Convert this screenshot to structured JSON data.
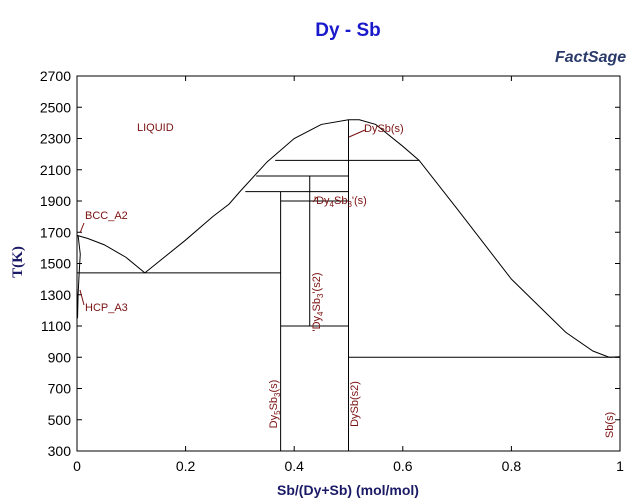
{
  "chart_data": {
    "type": "phase-diagram",
    "title": "Dy - Sb",
    "logo": "FactSage",
    "x_label": "Sb/(Dy+Sb) (mol/mol)",
    "y_label": "T(K)",
    "xlim": [
      0,
      1
    ],
    "ylim": [
      300,
      2700
    ],
    "xticks": [
      0,
      0.2,
      0.4,
      0.6,
      0.8,
      1
    ],
    "yticks": [
      300,
      500,
      700,
      900,
      1100,
      1300,
      1500,
      1700,
      1900,
      2100,
      2300,
      2500,
      2700
    ],
    "color": "#000000",
    "series": [
      {
        "x": [
          0,
          0.02,
          0.05,
          0.09,
          0.125
        ],
        "values": [
          1680,
          1660,
          1620,
          1540,
          1440
        ]
      },
      {
        "x": [
          0.125,
          0.2,
          0.25,
          0.28,
          0.3,
          0.35,
          0.4,
          0.45,
          0.5,
          0.52,
          0.55,
          0.6,
          0.63,
          0.7,
          0.8,
          0.9,
          0.95,
          0.98,
          1
        ],
        "values": [
          1440,
          1650,
          1800,
          1880,
          1960,
          2150,
          2300,
          2390,
          2420,
          2420,
          2390,
          2250,
          2160,
          1850,
          1400,
          1060,
          940,
          900,
          903
        ]
      },
      {
        "x": [
          0,
          0.375
        ],
        "values": [
          1440,
          1440
        ]
      },
      {
        "x": [
          0.365,
          0.63
        ],
        "values": [
          2160,
          2160
        ]
      },
      {
        "x": [
          0.33,
          0.5
        ],
        "values": [
          2060,
          2060
        ]
      },
      {
        "x": [
          0.31,
          0.5
        ],
        "values": [
          1960,
          1960
        ]
      },
      {
        "x": [
          0.375,
          0.5
        ],
        "values": [
          1900,
          1900
        ]
      },
      {
        "x": [
          0.375,
          0.5
        ],
        "values": [
          1100,
          1100
        ]
      },
      {
        "x": [
          0.5,
          1
        ],
        "values": [
          900,
          900
        ]
      },
      {
        "x": [
          0.375,
          0.375
        ],
        "values": [
          300,
          1960
        ]
      },
      {
        "x": [
          0.4286,
          0.4286
        ],
        "values": [
          1100,
          2060
        ]
      },
      {
        "x": [
          0.5,
          0.5
        ],
        "values": [
          300,
          2420
        ]
      },
      {
        "x": [
          0.002,
          0.006,
          0.004,
          0.002,
          0.001
        ],
        "values": [
          1680,
          1560,
          1440,
          1300,
          1150
        ]
      }
    ],
    "annotations": [
      {
        "parts": [
          "LIQUID"
        ]
      },
      {
        "parts": [
          "BCC_A2"
        ]
      },
      {
        "parts": [
          "HCP_A3"
        ]
      },
      {
        "parts": [
          "DySb(s)"
        ]
      },
      {
        "parts": [
          "'Dy",
          "4",
          "Sb",
          "3",
          "'(s)"
        ]
      },
      {
        "parts": [
          "'Dy",
          "4",
          "Sb",
          "3",
          "'(s2)"
        ]
      },
      {
        "parts": [
          "Dy",
          "5",
          "Sb",
          "3",
          "(s)"
        ]
      },
      {
        "parts": [
          "DySb(s2)"
        ]
      },
      {
        "parts": [
          "Sb(s)"
        ]
      }
    ]
  }
}
